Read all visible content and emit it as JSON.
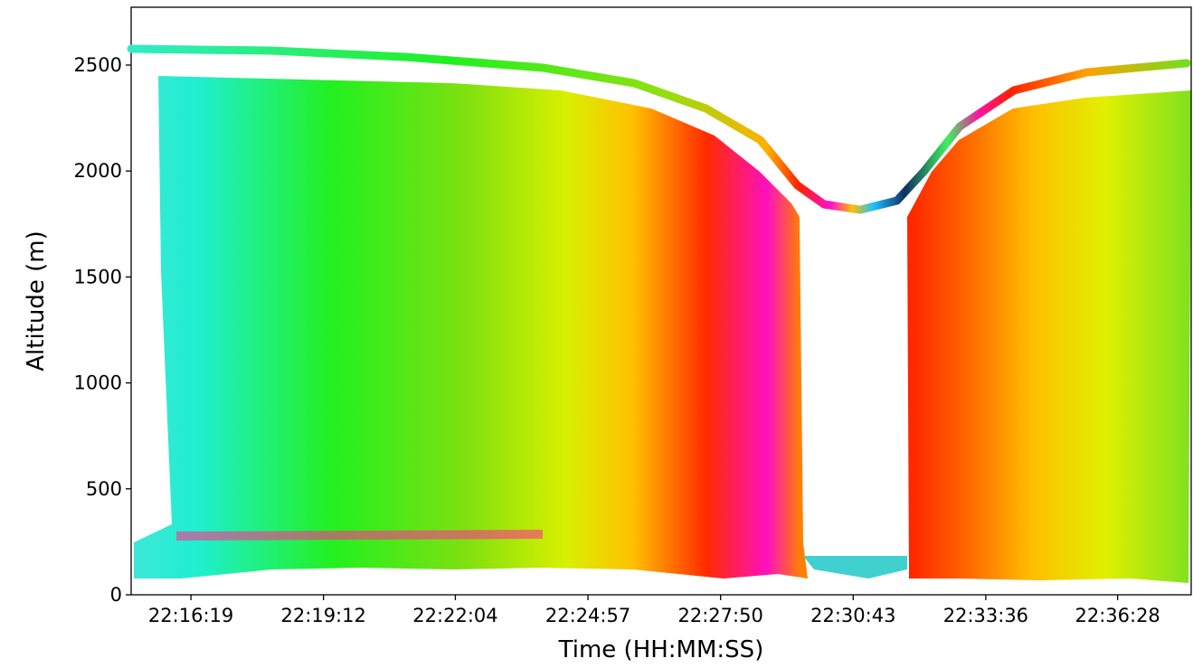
{
  "chart_data": {
    "type": "line",
    "x_label": "Time (HH:MM:SS)",
    "y_label": "Altitude (m)",
    "x": [
      "22:15:01",
      "22:18:04",
      "22:21:01",
      "22:23:59",
      "22:25:57",
      "22:27:31",
      "22:28:42",
      "22:29:30",
      "22:30:05",
      "22:30:52",
      "22:31:40",
      "22:32:15",
      "22:33:02",
      "22:34:13",
      "22:35:48",
      "22:37:58"
    ],
    "values": [
      2577,
      2568,
      2538,
      2487,
      2415,
      2295,
      2146,
      1933,
      1843,
      1817,
      1860,
      1997,
      2210,
      2381,
      2466,
      2509
    ],
    "xlim": [
      "22:15:01",
      "22:38:04"
    ],
    "ylim": [
      0,
      2773
    ],
    "xticks": [
      "22:16:19",
      "22:19:12",
      "22:22:04",
      "22:24:57",
      "22:27:50",
      "22:30:43",
      "22:33:36",
      "22:36:28"
    ],
    "yticks": [
      0,
      500,
      1000,
      1500,
      2000,
      2500
    ]
  }
}
